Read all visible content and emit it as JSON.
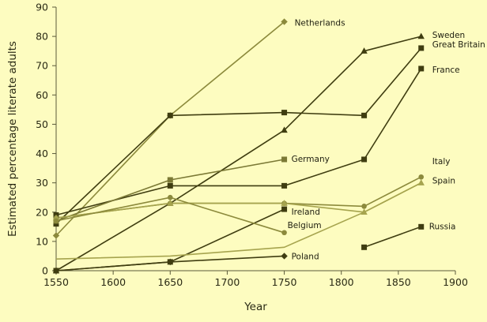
{
  "chart_data": {
    "type": "line",
    "title": "",
    "xlabel": "Year",
    "ylabel": "Estimated percentage literate adults",
    "xlim": [
      1550,
      1900
    ],
    "ylim": [
      0,
      90
    ],
    "xticks": [
      1550,
      1600,
      1650,
      1700,
      1750,
      1800,
      1850,
      1900
    ],
    "yticks": [
      0,
      10,
      20,
      30,
      40,
      50,
      60,
      70,
      80,
      90
    ],
    "grid": false,
    "legend": "none (series labelled inline at line ends)",
    "series": [
      {
        "name": "Netherlands",
        "color": "#8c8a3c",
        "marker": "diamond",
        "x": [
          1550,
          1650,
          1750
        ],
        "y": [
          12,
          53,
          85
        ]
      },
      {
        "name": "Sweden",
        "color": "#3f3d10",
        "marker": "triangle",
        "x": [
          1550,
          1650,
          1750,
          1820,
          1870
        ],
        "y": [
          0,
          23,
          48,
          75,
          80
        ]
      },
      {
        "name": "Great Britain",
        "color": "#3f3d10",
        "marker": "square",
        "x": [
          1550,
          1650,
          1750,
          1820,
          1870
        ],
        "y": [
          16,
          53,
          54,
          53,
          76
        ]
      },
      {
        "name": "France",
        "color": "#3f3d10",
        "marker": "square",
        "x": [
          1550,
          1650,
          1750,
          1820,
          1870
        ],
        "y": [
          19,
          29,
          29,
          38,
          69
        ]
      },
      {
        "name": "Germany",
        "color": "#7b7935",
        "marker": "square",
        "x": [
          1550,
          1650,
          1750
        ],
        "y": [
          17,
          31,
          38
        ]
      },
      {
        "name": "Italy",
        "color": "#8c8a3c",
        "marker": "circle",
        "x": [
          1550,
          1650,
          1750,
          1820,
          1870
        ],
        "y": [
          18,
          23,
          23,
          22,
          32
        ]
      },
      {
        "name": "Spain",
        "color": "#a6a44e",
        "marker": "triangle",
        "x": [
          1550,
          1650,
          1750,
          1820,
          1870
        ],
        "y": [
          18,
          23,
          23,
          20,
          30
        ]
      },
      {
        "name": "Ireland",
        "color": "#3f3d10",
        "marker": "square",
        "x": [
          1550,
          1650,
          1750
        ],
        "y": [
          0,
          3,
          21
        ]
      },
      {
        "name": "Belgium",
        "color": "#8c8a3c",
        "marker": "circle",
        "x": [
          1550,
          1650,
          1750
        ],
        "y": [
          17,
          25,
          13
        ]
      },
      {
        "name": "Russia",
        "color": "#3f3d10",
        "marker": "square",
        "x": [
          1820,
          1870
        ],
        "y": [
          8,
          15
        ]
      },
      {
        "name": "Poland",
        "color": "#3f3d10",
        "marker": "diamond",
        "x": [
          1550,
          1650,
          1750
        ],
        "y": [
          0,
          3,
          5
        ]
      },
      {
        "name": "",
        "color": "#a6a44e",
        "marker": "none",
        "x": [
          1550,
          1650,
          1750,
          1820,
          1870
        ],
        "y": [
          4,
          5,
          8,
          20,
          30
        ]
      }
    ]
  }
}
